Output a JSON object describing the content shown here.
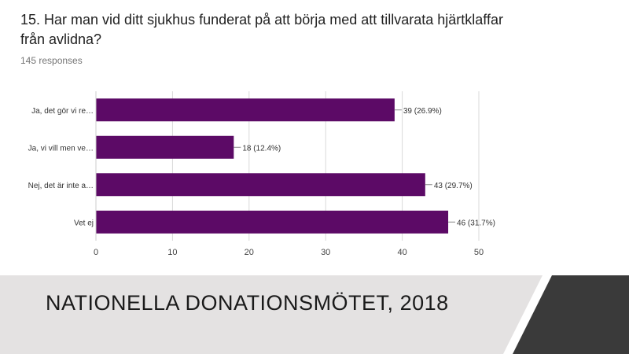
{
  "slide": {
    "question": "15. Har man vid ditt sjukhus funderat på att börja med att tillvarata hjärtklaffar från avlidna?",
    "responses": "145 responses",
    "footer_title": "NATIONELLA DONATIONSMÖTET, 2018"
  },
  "colors": {
    "bar": "#5c0a66",
    "footer_band": "#e4e2e2",
    "corner_dark": "#3a3a3a"
  },
  "chart_data": {
    "type": "bar",
    "orientation": "horizontal",
    "categories": [
      "Ja, det gör vi re…",
      "Ja, vi vill men ve…",
      "Nej, det är inte a…",
      "Vet ej"
    ],
    "values": [
      39,
      18,
      43,
      46
    ],
    "data_labels": [
      "39 (26.9%)",
      "18 (12.4%)",
      "43 (29.7%)",
      "46 (31.7%)"
    ],
    "xticks": [
      0,
      10,
      20,
      30,
      40,
      50
    ],
    "xlim": [
      0,
      50
    ],
    "grid": true
  }
}
